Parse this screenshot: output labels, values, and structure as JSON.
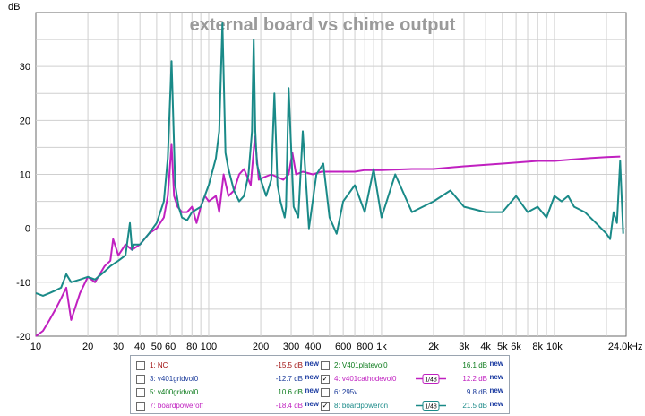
{
  "chart_data": {
    "type": "line",
    "title": "external board vs chime output",
    "xlabel": "Hz",
    "ylabel": "dB",
    "x_scale": "log",
    "xlim": [
      10,
      26000
    ],
    "ylim": [
      -20,
      40
    ],
    "x_ticks": [
      {
        "v": 10,
        "label": "10"
      },
      {
        "v": 20,
        "label": "20"
      },
      {
        "v": 30,
        "label": "30"
      },
      {
        "v": 40,
        "label": "40"
      },
      {
        "v": 50,
        "label": "50"
      },
      {
        "v": 60,
        "label": "60"
      },
      {
        "v": 80,
        "label": "80"
      },
      {
        "v": 100,
        "label": "100"
      },
      {
        "v": 200,
        "label": "200"
      },
      {
        "v": 300,
        "label": "300"
      },
      {
        "v": 400,
        "label": "400"
      },
      {
        "v": 600,
        "label": "600"
      },
      {
        "v": 800,
        "label": "800"
      },
      {
        "v": 1000,
        "label": "1k"
      },
      {
        "v": 2000,
        "label": "2k"
      },
      {
        "v": 3000,
        "label": "3k"
      },
      {
        "v": 4000,
        "label": "4k"
      },
      {
        "v": 5000,
        "label": "5k"
      },
      {
        "v": 6000,
        "label": "6k"
      },
      {
        "v": 8000,
        "label": "8k"
      },
      {
        "v": 10000,
        "label": "10k"
      },
      {
        "v": 24000,
        "label": "24.0k"
      }
    ],
    "y_ticks": [
      30,
      20,
      10,
      0,
      -10,
      -20
    ],
    "grid": true,
    "series": [
      {
        "name": "v401cathodevol0",
        "color": "#c020c0",
        "x": [
          10,
          11,
          12,
          13,
          14,
          15,
          16,
          18,
          20,
          22,
          25,
          27,
          28,
          30,
          33,
          36,
          40,
          45,
          50,
          55,
          58,
          61,
          63,
          66,
          70,
          75,
          80,
          85,
          90,
          95,
          100,
          110,
          115,
          122,
          130,
          140,
          150,
          160,
          175,
          185,
          195,
          210,
          230,
          250,
          270,
          290,
          305,
          320,
          350,
          400,
          450,
          500,
          600,
          700,
          800,
          1000,
          1500,
          2000,
          3000,
          5000,
          8000,
          10000,
          13000,
          16000,
          20000,
          24000
        ],
        "y": [
          -20,
          -19,
          -17,
          -15,
          -13,
          -11,
          -17,
          -12,
          -9,
          -10,
          -7,
          -6,
          -2,
          -5,
          -3,
          -4,
          -3,
          -1,
          0,
          2,
          6,
          15.5,
          6,
          4,
          3,
          3,
          4,
          1,
          4,
          6,
          5,
          6,
          3,
          10,
          6,
          7,
          10,
          11,
          8,
          17,
          9,
          9.5,
          10,
          9.5,
          9,
          10,
          14,
          10,
          10.5,
          10,
          10.5,
          10.5,
          10.5,
          10.5,
          10.8,
          10.8,
          11,
          11,
          11.5,
          12,
          12.5,
          12.5,
          12.8,
          13,
          13.2,
          13.3
        ]
      },
      {
        "name": "boardpoweron",
        "color": "#1a8a88",
        "x": [
          10,
          11,
          12,
          13,
          14,
          15,
          16,
          18,
          20,
          22,
          25,
          27,
          30,
          33,
          35,
          36,
          37,
          40,
          45,
          50,
          55,
          58,
          61,
          64,
          67,
          70,
          75,
          80,
          90,
          100,
          110,
          115,
          120,
          125,
          130,
          140,
          150,
          160,
          170,
          178,
          182,
          186,
          190,
          200,
          215,
          230,
          240,
          250,
          260,
          270,
          275,
          280,
          290,
          310,
          330,
          350,
          380,
          420,
          460,
          500,
          550,
          600,
          700,
          800,
          900,
          1000,
          1200,
          1500,
          2000,
          2500,
          3000,
          4000,
          5000,
          6000,
          7000,
          8000,
          9000,
          10000,
          11000,
          12000,
          13000,
          15000,
          18000,
          20000,
          21000,
          22000,
          23000,
          24000,
          25000
        ],
        "y": [
          -12,
          -12.5,
          -12,
          -11.5,
          -11,
          -8.5,
          -10,
          -9.5,
          -9,
          -9.5,
          -8,
          -7,
          -6,
          -5,
          1,
          -4,
          -3,
          -3,
          -1,
          1,
          5,
          13,
          31,
          8,
          4,
          2,
          1.5,
          3,
          4,
          8,
          13,
          18,
          38,
          14,
          11,
          7,
          5,
          6,
          10,
          18,
          35,
          18,
          12,
          9,
          6,
          9,
          25,
          8,
          5,
          3,
          2,
          4,
          26,
          4,
          2,
          18,
          0,
          10,
          12,
          2,
          -1,
          5,
          8,
          3,
          11,
          2,
          10,
          3,
          5,
          7,
          4,
          3,
          3,
          6,
          3,
          4,
          2,
          6,
          5,
          6,
          4,
          3,
          0.5,
          -1,
          -2,
          3,
          1,
          12.5,
          -1
        ]
      }
    ],
    "legend": [
      {
        "index": "1",
        "name": "NC",
        "value": "-15.5 dB",
        "checked": false,
        "color": "#a01010",
        "swatch": ""
      },
      {
        "index": "2",
        "name": "V401platevol0",
        "value": "16.1 dB",
        "checked": false,
        "color": "#0a7a1a",
        "swatch": ""
      },
      {
        "index": "3",
        "name": "v401gridvol0",
        "value": "-12.7 dB",
        "checked": false,
        "color": "#1a3a9a",
        "swatch": ""
      },
      {
        "index": "4",
        "name": "v401cathodevol0",
        "value": "12.2 dB",
        "checked": true,
        "color": "#c020c0",
        "swatch": "1/48"
      },
      {
        "index": "5",
        "name": "v400gridvol0",
        "value": "10.6 dB",
        "checked": false,
        "color": "#0a7a1a",
        "swatch": ""
      },
      {
        "index": "6",
        "name": "295v",
        "value": "9.8 dB",
        "checked": false,
        "color": "#1a3a9a",
        "swatch": ""
      },
      {
        "index": "7",
        "name": "boardpoweroff",
        "value": "-18.4 dB",
        "checked": false,
        "color": "#c020c0",
        "swatch": ""
      },
      {
        "index": "8",
        "name": "boardpoweron",
        "value": "21.5 dB",
        "checked": true,
        "color": "#1a8a88",
        "swatch": "1/48"
      }
    ],
    "legend_new_label": "new"
  }
}
